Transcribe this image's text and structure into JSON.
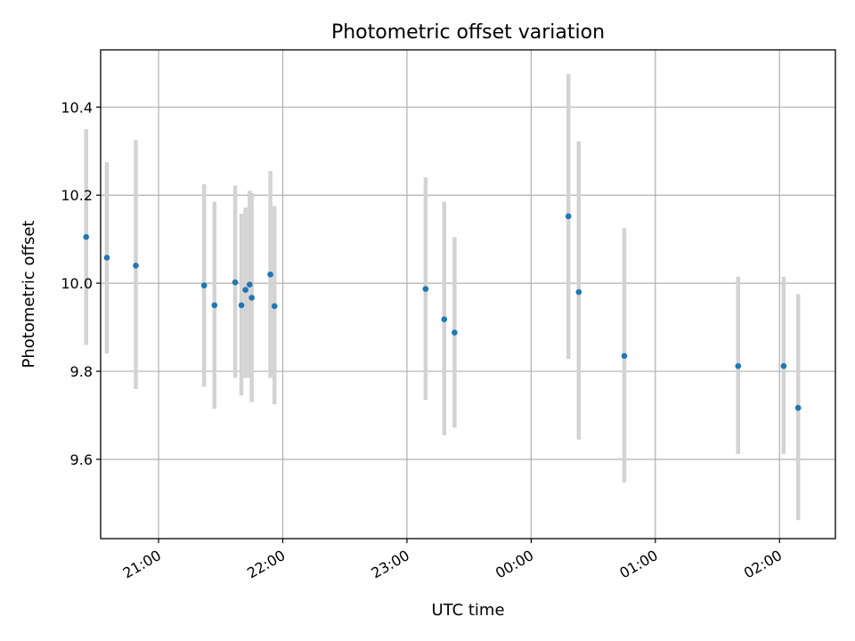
{
  "chart_data": {
    "type": "scatter",
    "title": "Photometric offset variation",
    "xlabel": "UTC time",
    "ylabel": "Photometric offset",
    "xlim": [
      "20:32",
      "02:27"
    ],
    "ylim": [
      9.42,
      10.53
    ],
    "grid": true,
    "x_ticks": [
      "21:00",
      "22:00",
      "23:00",
      "00:00",
      "01:00",
      "02:00"
    ],
    "y_ticks": [
      9.6,
      9.8,
      10.0,
      10.2,
      10.4
    ],
    "colors": {
      "points": "#1f77b4",
      "errorbars": "#d3d3d3"
    },
    "points": [
      {
        "x": "20:25",
        "y": 10.105,
        "low": 9.86,
        "high": 10.35
      },
      {
        "x": "20:35",
        "y": 10.058,
        "low": 9.84,
        "high": 10.275
      },
      {
        "x": "20:49",
        "y": 10.04,
        "low": 9.76,
        "high": 10.325
      },
      {
        "x": "21:22",
        "y": 9.995,
        "low": 9.765,
        "high": 10.225
      },
      {
        "x": "21:27",
        "y": 9.95,
        "low": 9.715,
        "high": 10.185
      },
      {
        "x": "21:37",
        "y": 10.002,
        "low": 9.785,
        "high": 10.222
      },
      {
        "x": "21:40",
        "y": 9.95,
        "low": 9.745,
        "high": 10.158
      },
      {
        "x": "21:42",
        "y": 9.985,
        "low": 9.785,
        "high": 10.172
      },
      {
        "x": "21:44",
        "y": 9.997,
        "low": 9.785,
        "high": 10.21
      },
      {
        "x": "21:45",
        "y": 9.967,
        "low": 9.73,
        "high": 10.205
      },
      {
        "x": "21:54",
        "y": 10.02,
        "low": 9.785,
        "high": 10.255
      },
      {
        "x": "21:56",
        "y": 9.948,
        "low": 9.725,
        "high": 10.175
      },
      {
        "x": "23:09",
        "y": 9.987,
        "low": 9.735,
        "high": 10.24
      },
      {
        "x": "23:18",
        "y": 9.918,
        "low": 9.655,
        "high": 10.185
      },
      {
        "x": "23:23",
        "y": 9.888,
        "low": 9.672,
        "high": 10.105
      },
      {
        "x": "00:18",
        "y": 10.152,
        "low": 9.828,
        "high": 10.475
      },
      {
        "x": "00:23",
        "y": 9.98,
        "low": 9.645,
        "high": 10.322
      },
      {
        "x": "00:45",
        "y": 9.835,
        "low": 9.548,
        "high": 10.125
      },
      {
        "x": "01:40",
        "y": 9.812,
        "low": 9.612,
        "high": 10.015
      },
      {
        "x": "02:02",
        "y": 9.812,
        "low": 9.612,
        "high": 10.015
      },
      {
        "x": "02:09",
        "y": 9.717,
        "low": 9.462,
        "high": 9.975
      }
    ]
  }
}
